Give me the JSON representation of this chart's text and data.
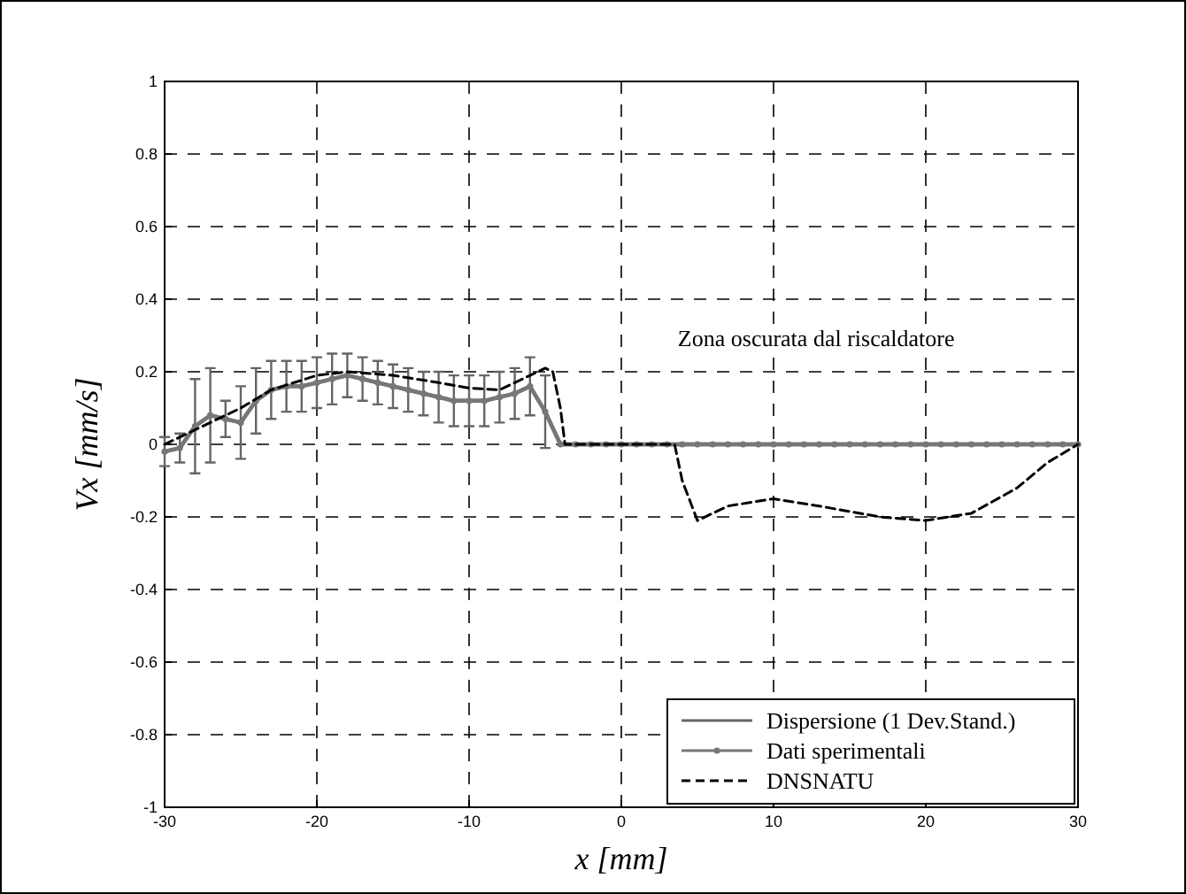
{
  "chart_data": {
    "type": "line",
    "xlabel": "x [mm]",
    "ylabel": "Vx [mm/s]",
    "xlim": [
      -30,
      30
    ],
    "ylim": [
      -1,
      1
    ],
    "xticks": [
      -30,
      -20,
      -10,
      0,
      10,
      20,
      30
    ],
    "yticks": [
      -1,
      -0.8,
      -0.6,
      -0.4,
      -0.2,
      0,
      0.2,
      0.4,
      0.6,
      0.8,
      1
    ],
    "grid": true,
    "legend": "bottom right",
    "annotations": [
      "Zona oscurata dal riscaldatore"
    ],
    "x": [
      -30,
      -29,
      -28,
      -27,
      -26,
      -25,
      -24,
      -23,
      -22,
      -21,
      -20,
      -19,
      -18,
      -17,
      -16,
      -15,
      -14,
      -13,
      -12,
      -11,
      -10,
      -9,
      -8,
      -7,
      -6,
      -5,
      -4,
      -3,
      -2,
      -1,
      0,
      1,
      2,
      3,
      4,
      5,
      6,
      7,
      8,
      9,
      10,
      11,
      12,
      13,
      14,
      15,
      16,
      17,
      18,
      19,
      20,
      21,
      22,
      23,
      24,
      25,
      26,
      27,
      28,
      29,
      30
    ],
    "series": [
      {
        "name": "Dispersione (1 Dev.Stand.)",
        "color": "#666666",
        "line_style": "solid",
        "marker": "none",
        "values": [
          -0.02,
          -0.01,
          0.05,
          0.08,
          0.07,
          0.06,
          0.12,
          0.15,
          0.16,
          0.16,
          0.17,
          0.18,
          0.19,
          0.18,
          0.17,
          0.16,
          0.15,
          0.14,
          0.13,
          0.12,
          0.12,
          0.12,
          0.13,
          0.14,
          0.16,
          0.09,
          0,
          0,
          0,
          0,
          0,
          0,
          0,
          0,
          0,
          0,
          0,
          0,
          0,
          0,
          0,
          0,
          0,
          0,
          0,
          0,
          0,
          0,
          0,
          0,
          0,
          0,
          0,
          0,
          0,
          0,
          0,
          0,
          0,
          0,
          0
        ],
        "errors": [
          0.04,
          0.04,
          0.13,
          0.13,
          0.05,
          0.1,
          0.09,
          0.08,
          0.07,
          0.07,
          0.07,
          0.07,
          0.06,
          0.06,
          0.06,
          0.06,
          0.06,
          0.06,
          0.07,
          0.07,
          0.07,
          0.07,
          0.07,
          0.07,
          0.08,
          0.1,
          null,
          null,
          null,
          null,
          null,
          null,
          null,
          null,
          null,
          null,
          null,
          null,
          null,
          null,
          null,
          null,
          null,
          null,
          null,
          null,
          null,
          null,
          null,
          null,
          null,
          null,
          null,
          null,
          null,
          null,
          null,
          null,
          null,
          null,
          null
        ]
      },
      {
        "name": "Dati sperimentali",
        "color": "#777777",
        "line_style": "solid",
        "marker": "circle",
        "values": [
          -0.02,
          -0.01,
          0.05,
          0.08,
          0.07,
          0.06,
          0.12,
          0.15,
          0.16,
          0.16,
          0.17,
          0.18,
          0.19,
          0.18,
          0.17,
          0.16,
          0.15,
          0.14,
          0.13,
          0.12,
          0.12,
          0.12,
          0.13,
          0.14,
          0.16,
          0.09,
          0,
          0,
          0,
          0,
          0,
          0,
          0,
          0,
          0,
          0,
          0,
          0,
          0,
          0,
          0,
          0,
          0,
          0,
          0,
          0,
          0,
          0,
          0,
          0,
          0,
          0,
          0,
          0,
          0,
          0,
          0,
          0,
          0,
          0,
          0
        ]
      },
      {
        "name": "DNSNATU",
        "color": "#000000",
        "line_style": "dashed",
        "marker": "none",
        "x": [
          -30,
          -28,
          -27,
          -25,
          -23,
          -20,
          -18,
          -15,
          -12,
          -10,
          -8,
          -6,
          -5,
          -4.5,
          -4,
          -3.7,
          0,
          3.5,
          4,
          5,
          7,
          10,
          13,
          17,
          20,
          23,
          26,
          28,
          30
        ],
        "values": [
          0,
          0.04,
          0.06,
          0.1,
          0.15,
          0.19,
          0.2,
          0.19,
          0.17,
          0.155,
          0.15,
          0.19,
          0.21,
          0.2,
          0.1,
          0,
          0,
          0,
          -0.1,
          -0.21,
          -0.17,
          -0.15,
          -0.17,
          -0.2,
          -0.21,
          -0.19,
          -0.12,
          -0.05,
          0
        ]
      }
    ]
  }
}
